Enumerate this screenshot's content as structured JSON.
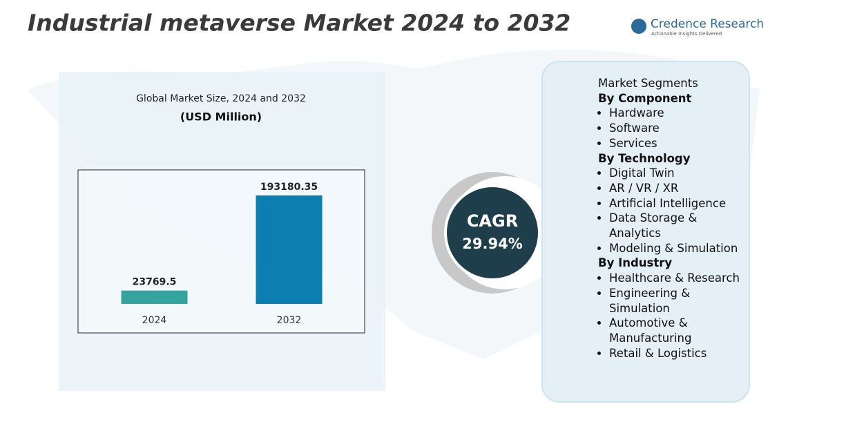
{
  "header": {
    "title": "Industrial metaverse Market 2024 to 2032",
    "brand": "Credence Research",
    "tagline": "Actionable Insights Delivered"
  },
  "chart_data": {
    "type": "bar",
    "title": "Global Market Size, 2024 and 2032",
    "subtitle": "(USD Million)",
    "categories": [
      "2024",
      "2032"
    ],
    "values": [
      23769.5,
      193180.35
    ],
    "colors": [
      "#35a3a0",
      "#0a7fb0"
    ]
  },
  "cagr": {
    "label": "CAGR",
    "value": "29.94%"
  },
  "segments": {
    "title": "Market Segments",
    "groups": [
      {
        "name": "By Component",
        "items": [
          "Hardware",
          "Software",
          "Services"
        ]
      },
      {
        "name": "By Technology",
        "items": [
          "Digital Twin",
          "AR / VR / XR",
          "Artificial Intelligence",
          "Data Storage & Analytics",
          "Modeling & Simulation"
        ]
      },
      {
        "name": "By Industry",
        "items": [
          "Healthcare & Research",
          "Engineering & Simulation",
          "Automotive & Manufacturing",
          "Retail & Logistics"
        ]
      }
    ]
  }
}
